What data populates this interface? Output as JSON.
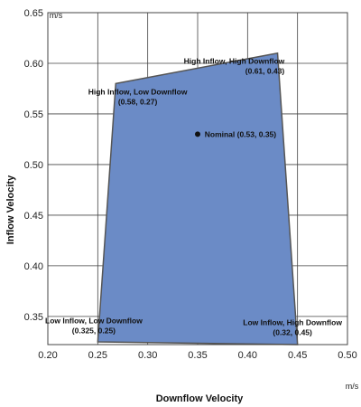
{
  "chart_data": {
    "type": "scatter",
    "xlabel": "Downflow Velocity",
    "ylabel": "Inflow Velocity",
    "x_unit": "m/s",
    "y_unit": "m/s",
    "xlim": [
      0.2,
      0.5
    ],
    "ylim": [
      0.3222,
      0.65
    ],
    "x_ticks": [
      "0.20",
      "0.25",
      "0.30",
      "0.35",
      "0.40",
      "0.45",
      "0.50"
    ],
    "y_ticks": [
      "0.35",
      "0.40",
      "0.45",
      "0.50",
      "0.55",
      "0.60",
      "0.65"
    ],
    "grid": true,
    "colors": {
      "fill": "#6b8bc6",
      "edge": "#555555",
      "point": "#111111"
    },
    "region": [
      {
        "x": 0.268,
        "y": 0.58
      },
      {
        "x": 0.43,
        "y": 0.61
      },
      {
        "x": 0.45,
        "y": 0.3222
      },
      {
        "x": 0.25,
        "y": 0.3249
      }
    ],
    "point": {
      "x": 0.35,
      "y": 0.53
    },
    "annotations": [
      {
        "id": "high-inflow-low-downflow",
        "lines": [
          "High Inflow, Low Downflow",
          "(0.58, 0.27)"
        ],
        "x": 0.29,
        "y": 0.567,
        "anchor": "middle"
      },
      {
        "id": "high-inflow-high-downflow",
        "lines": [
          "High Inflow, High Downflow",
          "(0.61, 0.43)"
        ],
        "x": 0.437,
        "y": 0.5975,
        "anchor": "end"
      },
      {
        "id": "nominal",
        "lines": [
          "Nominal (0.53, 0.35)"
        ],
        "x": 0.357,
        "y": 0.53,
        "anchor": "start"
      },
      {
        "id": "low-inflow-low-downflow",
        "lines": [
          "Low Inflow, Low Downflow",
          "(0.325, 0.25)"
        ],
        "x": 0.246,
        "y": 0.341,
        "anchor": "middle"
      },
      {
        "id": "low-inflow-high-downflow",
        "lines": [
          "Low Inflow, High Downflow",
          "(0.32, 0.45)"
        ],
        "x": 0.445,
        "y": 0.339,
        "anchor": "middle"
      }
    ]
  }
}
